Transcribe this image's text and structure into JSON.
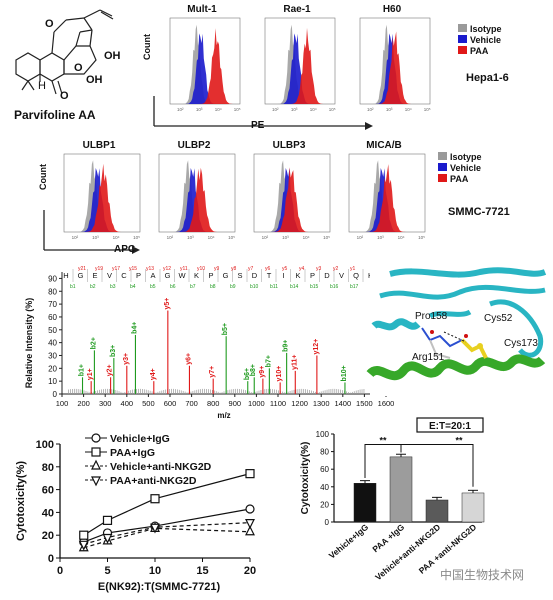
{
  "structure": {
    "name": "Parvifoline AA",
    "atoms": [
      "O",
      "OH",
      "OH",
      "H",
      "O",
      "O"
    ]
  },
  "flow_row1": {
    "panels": [
      "Mult-1",
      "Rae-1",
      "H60"
    ],
    "ylabel": "Count",
    "xlabel": "PE",
    "legend": [
      "Isotype",
      "Vehicle",
      "PAA"
    ],
    "cell_line": "Hepa1-6",
    "ticks": [
      "10²",
      "10³",
      "10⁴",
      "10⁵"
    ]
  },
  "flow_row2": {
    "panels": [
      "ULBP1",
      "ULBP2",
      "ULBP3",
      "MICA/B"
    ],
    "ylabel": "Count",
    "xlabel": "APC",
    "legend": [
      "Isotype",
      "Vehicle",
      "PAA"
    ],
    "cell_line": "SMMC-7721"
  },
  "colors": {
    "isotype": "#9a9a9a",
    "vehicle": "#1a1acc",
    "paa": "#e01818",
    "green": "#1e9a1e",
    "cyan": "#29b5c3"
  },
  "ms": {
    "ylabel": "Relative Intensity (%)",
    "xlabel": "m/z",
    "yticks": [
      "0",
      "10",
      "20",
      "30",
      "40",
      "50",
      "60",
      "70",
      "80",
      "90"
    ],
    "xticks": [
      "100",
      "200",
      "300",
      "400",
      "500",
      "600",
      "700",
      "800",
      "900",
      "1000",
      "1100",
      "1200",
      "1300",
      "1400",
      "1500",
      "1600"
    ],
    "sequence": [
      "H",
      "G",
      "E",
      "V",
      "C",
      "P",
      "A",
      "G",
      "W",
      "K",
      "P",
      "G",
      "S",
      "D",
      "T",
      "I",
      "K",
      "P",
      "D",
      "V",
      "Q",
      "K"
    ],
    "y_ions_top": [
      "y21",
      "y19",
      "y17",
      "y15",
      "y13",
      "y12",
      "y11",
      "y10",
      "y9",
      "y8",
      "y7",
      "y6",
      "y5",
      "y4",
      "y3",
      "y2",
      "y1"
    ],
    "b_ions_bottom": [
      "b1",
      "b2",
      "b3",
      "b4",
      "b5",
      "b6",
      "b7",
      "b8",
      "b9",
      "b10",
      "b11",
      "b14",
      "b15",
      "b16",
      "b17"
    ],
    "peaks": [
      {
        "label": "b1+",
        "mz": 195,
        "h": 13,
        "c": "green"
      },
      {
        "label": "y1+",
        "mz": 235,
        "h": 10,
        "c": "red"
      },
      {
        "label": "b2+",
        "mz": 250,
        "h": 34,
        "c": "green"
      },
      {
        "label": "y2+",
        "mz": 325,
        "h": 13,
        "c": "red"
      },
      {
        "label": "b3+",
        "mz": 340,
        "h": 28,
        "c": "green"
      },
      {
        "label": "y3+",
        "mz": 400,
        "h": 22,
        "c": "red"
      },
      {
        "label": "b4+",
        "mz": 440,
        "h": 46,
        "c": "green"
      },
      {
        "label": "y4+",
        "mz": 525,
        "h": 10,
        "c": "red"
      },
      {
        "label": "y5+",
        "mz": 590,
        "h": 65,
        "c": "red"
      },
      {
        "label": "y6+",
        "mz": 690,
        "h": 22,
        "c": "red"
      },
      {
        "label": "y7+",
        "mz": 800,
        "h": 12,
        "c": "red"
      },
      {
        "label": "b5+",
        "mz": 860,
        "h": 45,
        "c": "green"
      },
      {
        "label": "b6+",
        "mz": 960,
        "h": 10,
        "c": "green"
      },
      {
        "label": "b8+",
        "mz": 990,
        "h": 13,
        "c": "green"
      },
      {
        "label": "y9+",
        "mz": 1030,
        "h": 12,
        "c": "red"
      },
      {
        "label": "b7+",
        "mz": 1060,
        "h": 20,
        "c": "green"
      },
      {
        "label": "y10+",
        "mz": 1110,
        "h": 9,
        "c": "red"
      },
      {
        "label": "b9+",
        "mz": 1140,
        "h": 32,
        "c": "green"
      },
      {
        "label": "y11+",
        "mz": 1180,
        "h": 18,
        "c": "red"
      },
      {
        "label": "y12+",
        "mz": 1280,
        "h": 30,
        "c": "red"
      },
      {
        "label": "b10+",
        "mz": 1410,
        "h": 9,
        "c": "green"
      }
    ]
  },
  "protein": {
    "labels": [
      "Pro158",
      "Cys52",
      "Arg151",
      "Cys173"
    ]
  },
  "chart_data": [
    {
      "type": "line",
      "xlabel": "E(NK92):T(SMMC-7721)",
      "ylabel": "Cytotoxicity(%)",
      "xlim": [
        0,
        20
      ],
      "ylim": [
        0,
        100
      ],
      "xticks": [
        "0",
        "5",
        "10",
        "15",
        "20"
      ],
      "yticks": [
        "0",
        "20",
        "40",
        "60",
        "80",
        "100"
      ],
      "x": [
        2.5,
        5,
        10,
        20
      ],
      "series": [
        {
          "name": "Vehicle+IgG",
          "values": [
            14,
            22,
            28,
            43
          ],
          "marker": "circle",
          "dash": false
        },
        {
          "name": "PAA+IgG",
          "values": [
            20,
            33,
            52,
            74
          ],
          "marker": "square",
          "dash": false
        },
        {
          "name": "Vehicle+anti-NKG2D",
          "values": [
            9,
            15,
            26,
            23
          ],
          "marker": "triangle",
          "dash": true
        },
        {
          "name": "PAA+anti-NKG2D",
          "values": [
            12,
            18,
            27,
            31
          ],
          "marker": "triangle-down",
          "dash": true
        }
      ]
    },
    {
      "type": "bar",
      "title": "E:T=20:1",
      "ylabel": "Cytotoxicity(%)",
      "ylim": [
        0,
        100
      ],
      "yticks": [
        "0",
        "20",
        "40",
        "60",
        "80",
        "100"
      ],
      "categories": [
        "Vehicle+IgG",
        "PAA +IgG",
        "Vehicle+anti-NKG2D",
        "PAA +anti-NKG2D"
      ],
      "values": [
        44,
        74,
        25,
        33
      ],
      "errors": [
        3,
        3,
        3,
        3
      ],
      "colors": [
        "#111111",
        "#9c9c9c",
        "#5a5a5a",
        "#d6d6d6"
      ],
      "significance": [
        "**",
        "**"
      ]
    }
  ],
  "watermark": "中国生物技术网"
}
